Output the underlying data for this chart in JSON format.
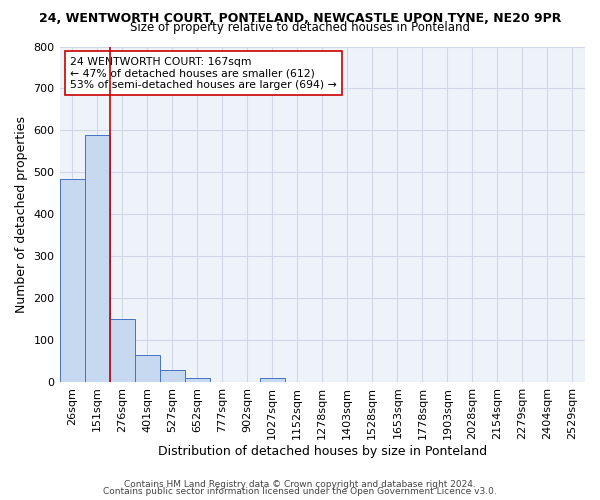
{
  "title": "24, WENTWORTH COURT, PONTELAND, NEWCASTLE UPON TYNE, NE20 9PR",
  "subtitle": "Size of property relative to detached houses in Ponteland",
  "xlabel": "Distribution of detached houses by size in Ponteland",
  "ylabel": "Number of detached properties",
  "bar_values": [
    485,
    590,
    150,
    63,
    28,
    10,
    0,
    0,
    10,
    0,
    0,
    0,
    0,
    0,
    0,
    0,
    0,
    0,
    0,
    0,
    0
  ],
  "bin_labels": [
    "26sqm",
    "151sqm",
    "276sqm",
    "401sqm",
    "527sqm",
    "652sqm",
    "777sqm",
    "902sqm",
    "1027sqm",
    "1152sqm",
    "1278sqm",
    "1403sqm",
    "1528sqm",
    "1653sqm",
    "1778sqm",
    "1903sqm",
    "2028sqm",
    "2154sqm",
    "2279sqm",
    "2404sqm",
    "2529sqm"
  ],
  "bar_color": "#c6d9f1",
  "bar_edge_color": "#4472c4",
  "grid_color": "#d0d8e8",
  "background_color": "#eef2f9",
  "red_line_x": 1.5,
  "red_line_color": "#cc0000",
  "annotation_text": "24 WENTWORTH COURT: 167sqm\n← 47% of detached houses are smaller (612)\n53% of semi-detached houses are larger (694) →",
  "annotation_box_color": "#ffffff",
  "annotation_box_edge": "#cc0000",
  "ylim": [
    0,
    800
  ],
  "yticks": [
    0,
    100,
    200,
    300,
    400,
    500,
    600,
    700,
    800
  ],
  "footer_line1": "Contains HM Land Registry data © Crown copyright and database right 2024.",
  "footer_line2": "Contains public sector information licensed under the Open Government Licence v3.0."
}
